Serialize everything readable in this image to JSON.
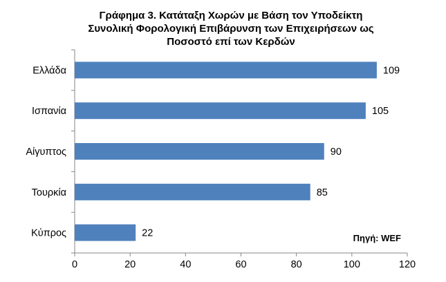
{
  "chart_data": {
    "type": "bar",
    "orientation": "horizontal",
    "title_lines": [
      "Γράφημα 3. Κατάταξη Χωρών με Βάση τον Υποδείκτη",
      "Συνολική Φορολογική Επιβάρυνση των Επιχειρήσεων ως",
      "Ποσοστό επί των Κερδών"
    ],
    "categories": [
      "Ελλάδα",
      "Ισπανία",
      "Αίγυπτος",
      "Τουρκία",
      "Κύπρος"
    ],
    "values": [
      109,
      105,
      90,
      85,
      22
    ],
    "xlim": [
      0,
      120
    ],
    "xticks": [
      0,
      20,
      40,
      60,
      80,
      100,
      120
    ],
    "grid": false,
    "bar_color": "#4f81bd",
    "source": "Πηγή: WEF"
  }
}
